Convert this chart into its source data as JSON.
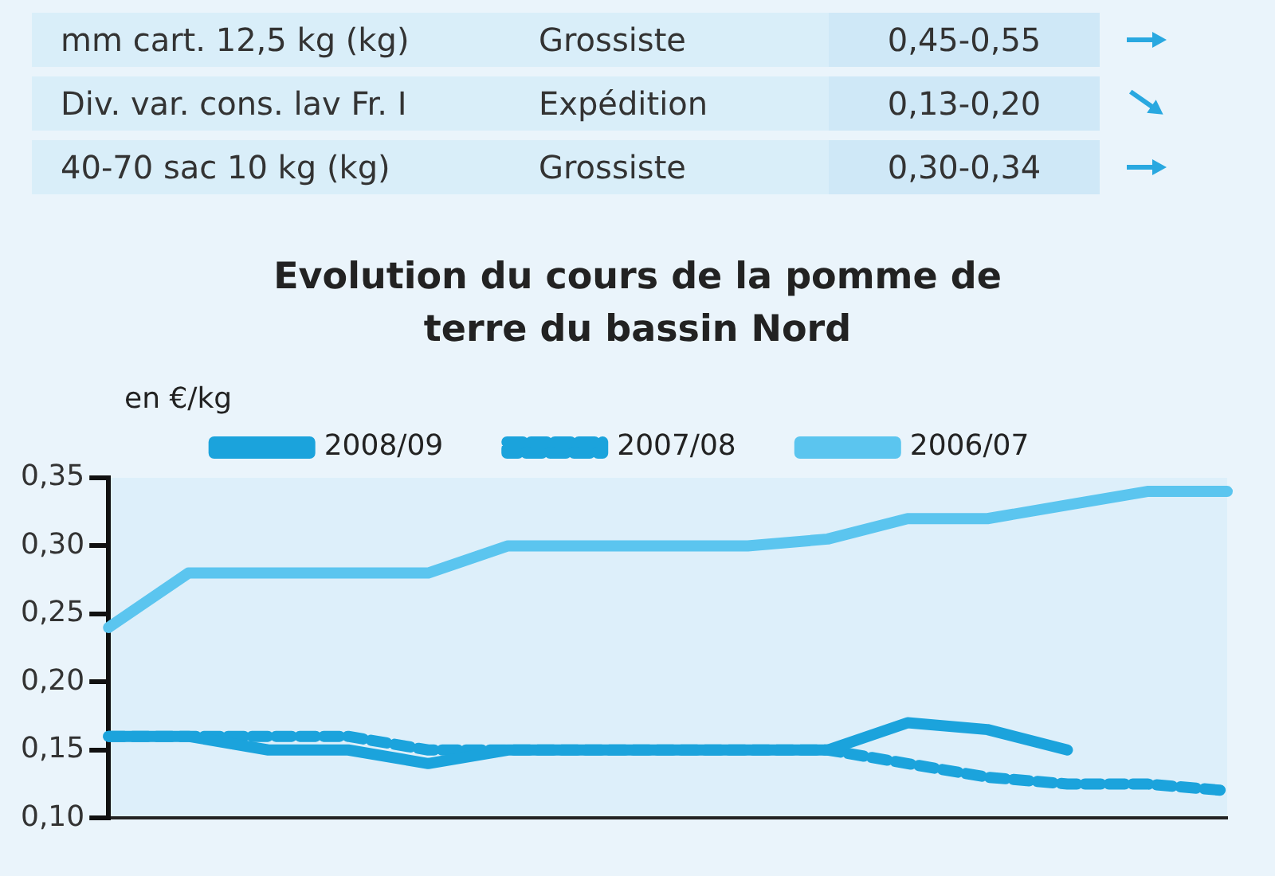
{
  "chart_data": {
    "type": "line",
    "title": "Evolution du cours de la pomme de terre du bassin Nord",
    "ylabel": "en €/kg",
    "annotations": [
      "mm cart. 12,5 kg (kg)",
      "Grossiste",
      "0,45-0,55",
      "Div. var. cons. lav Fr. I",
      "Expédition",
      "0,13-0,20",
      "40-70 sac 10 kg (kg)",
      "Grossiste",
      "0,30-0,34"
    ],
    "categories": [
      null,
      null,
      null,
      null,
      null,
      null,
      null,
      null,
      null,
      null,
      null,
      null,
      null,
      null,
      null
    ],
    "series": [
      {
        "name": "2008/09",
        "color": "#1ba3dc",
        "line_style": "solid",
        "values": [
          0.16,
          0.16,
          0.15,
          0.15,
          0.14,
          0.15,
          0.15,
          0.15,
          0.15,
          0.15,
          0.17,
          0.165,
          0.15,
          null,
          null
        ]
      },
      {
        "name": "2007/08",
        "color": "#1ba3dc",
        "line_style": "dashed",
        "values": [
          0.16,
          0.16,
          0.16,
          0.16,
          0.15,
          0.15,
          0.15,
          0.15,
          0.15,
          0.15,
          0.14,
          0.13,
          0.125,
          0.125,
          0.12
        ]
      },
      {
        "name": "2006/07",
        "color": "#5bc5ef",
        "line_style": "solid",
        "values": [
          0.24,
          0.28,
          0.28,
          0.28,
          0.28,
          0.3,
          0.3,
          0.3,
          0.3,
          0.305,
          0.32,
          0.32,
          0.33,
          0.34,
          0.34
        ]
      }
    ],
    "ylim": [
      0.1,
      0.35
    ],
    "yticks": [
      {
        "value": 0.1,
        "label": "0,10"
      },
      {
        "value": 0.15,
        "label": "0,15"
      },
      {
        "value": 0.2,
        "label": "0,20"
      },
      {
        "value": 0.25,
        "label": "0,25"
      },
      {
        "value": 0.3,
        "label": "0,30"
      },
      {
        "value": 0.35,
        "label": "0,35"
      }
    ],
    "grid": false,
    "legend": "top",
    "marker": "none"
  }
}
